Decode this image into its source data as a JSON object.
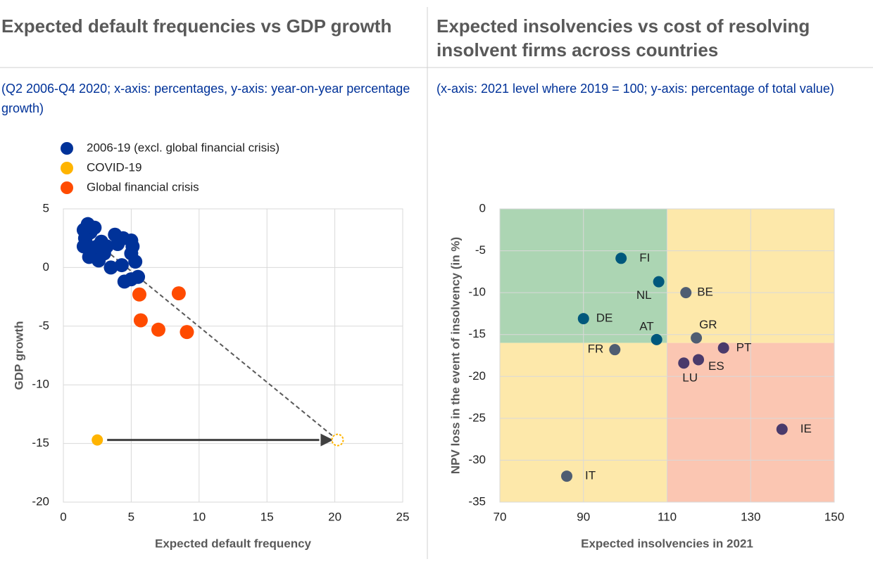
{
  "chart_data": [
    {
      "type": "scatter",
      "title": "Expected default frequencies vs GDP growth",
      "subtitle": "(Q2 2006-Q4 2020; x-axis: percentages, y-axis: year-on-year percentage growth)",
      "x_label": "Expected default frequency",
      "y_label": "GDP growth",
      "xlim": [
        0,
        25
      ],
      "xticks": [
        0,
        5,
        10,
        15,
        20,
        25
      ],
      "ylim": [
        -20,
        5
      ],
      "yticks": [
        -20,
        -15,
        -10,
        -5,
        0,
        5
      ],
      "grid": true,
      "series": [
        {
          "name": "2006-19  (excl. global financial crisis)",
          "color": "#003299",
          "x": [
            1.5,
            1.8,
            2.0,
            2.3,
            1.6,
            1.7,
            2.0,
            2.2,
            1.9,
            2.5,
            2.8,
            3.0,
            3.2,
            3.5,
            3.8,
            4.0,
            4.4,
            5.0,
            5.1,
            5.0,
            5.3,
            4.5,
            5.0,
            5.5,
            4.3,
            1.5,
            2.6
          ],
          "y": [
            3.2,
            3.7,
            3.0,
            3.4,
            2.5,
            2.0,
            1.5,
            1.0,
            0.9,
            1.8,
            2.2,
            1.2,
            1.8,
            0.0,
            2.8,
            2.0,
            2.5,
            2.3,
            1.8,
            1.2,
            0.5,
            -1.2,
            -1.0,
            -0.8,
            0.2,
            1.8,
            0.6
          ]
        },
        {
          "name": "COVID-19",
          "color": "#ffb400",
          "x": [
            2.5
          ],
          "y": [
            -14.7
          ]
        },
        {
          "name": "Global financial crisis",
          "color": "#ff4b00",
          "x": [
            5.6,
            5.7,
            7.0,
            8.5,
            9.1
          ],
          "y": [
            -2.3,
            -4.5,
            -5.3,
            -2.2,
            -5.5
          ]
        }
      ],
      "trend_line": {
        "x": [
          1.5,
          20.2
        ],
        "y": [
          3.0,
          -14.7
        ]
      },
      "projected": {
        "x": 20.2,
        "y": -14.7,
        "color": "#ffb400"
      }
    },
    {
      "type": "scatter",
      "title": "Expected insolvencies vs cost of resolving insolvent firms across countries",
      "subtitle": "(x-axis: 2021 level where 2019 = 100; y-axis: percentage of total value)",
      "x_label": "Expected insolvencies in 2021",
      "y_label": "NPV loss in the event of insolvency (in %)",
      "xlim": [
        70,
        150
      ],
      "xticks": [
        70,
        90,
        110,
        130,
        150
      ],
      "ylim": [
        -35,
        0
      ],
      "yticks": [
        -35,
        -30,
        -25,
        -20,
        -15,
        -10,
        -5,
        0
      ],
      "grid": true,
      "regions": [
        {
          "xlim": [
            70,
            110
          ],
          "ylim": [
            -16,
            0
          ],
          "color": "#acd5b3"
        },
        {
          "xlim": [
            110,
            150
          ],
          "ylim": [
            -16,
            0
          ],
          "color": "#fde8aa"
        },
        {
          "xlim": [
            70,
            110
          ],
          "ylim": [
            -35,
            -16
          ],
          "color": "#fde8aa"
        },
        {
          "xlim": [
            110,
            150
          ],
          "ylim": [
            -35,
            -16
          ],
          "color": "#fbc6b2"
        }
      ],
      "labels": [
        "FI",
        "NL",
        "BE",
        "DE",
        "AT",
        "GR",
        "FR",
        "PT",
        "LU",
        "ES",
        "IE",
        "IT"
      ],
      "x": [
        99,
        108,
        114.5,
        90,
        107.5,
        117,
        97.5,
        123.5,
        114,
        117.5,
        137.5,
        86
      ],
      "y": [
        -5.9,
        -8.7,
        -10,
        -13.1,
        -15.6,
        -15.4,
        -16.8,
        -16.6,
        -18.4,
        -18,
        -26.3,
        -31.9
      ],
      "colors": [
        "#00587c",
        "#00587c",
        "#4f5d72",
        "#00587c",
        "#00587c",
        "#4f5d72",
        "#4f5d72",
        "#4a3a6b",
        "#4a3a6b",
        "#4a3a6b",
        "#4a3a6b",
        "#4f5d72"
      ]
    }
  ]
}
